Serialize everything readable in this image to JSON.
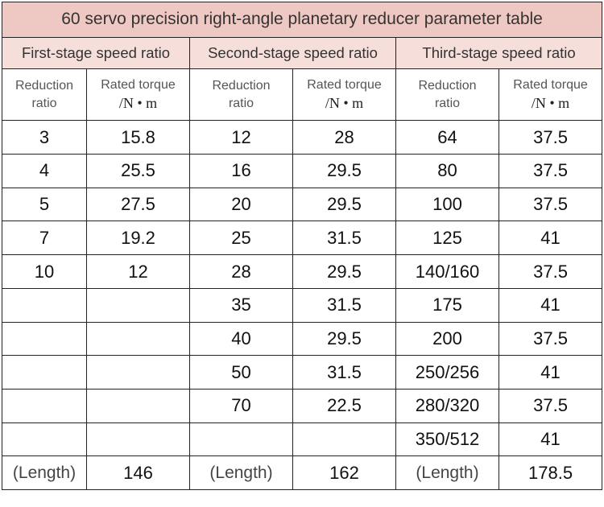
{
  "title": "60 servo precision right-angle planetary reducer parameter table",
  "stages": [
    {
      "label": "First-stage speed ratio"
    },
    {
      "label": "Second-stage speed ratio"
    },
    {
      "label": "Third-stage speed ratio"
    }
  ],
  "headers": {
    "ratio_line1": "Reduction",
    "ratio_line2": "ratio",
    "torque_line1": "Rated torque",
    "torque_line2": "/N • m"
  },
  "rows": [
    [
      "3",
      "15.8",
      "12",
      "28",
      "64",
      "37.5"
    ],
    [
      "4",
      "25.5",
      "16",
      "29.5",
      "80",
      "37.5"
    ],
    [
      "5",
      "27.5",
      "20",
      "29.5",
      "100",
      "37.5"
    ],
    [
      "7",
      "19.2",
      "25",
      "31.5",
      "125",
      "41"
    ],
    [
      "10",
      "12",
      "28",
      "29.5",
      "140/160",
      "37.5"
    ],
    [
      "",
      "",
      "35",
      "31.5",
      "175",
      "41"
    ],
    [
      "",
      "",
      "40",
      "29.5",
      "200",
      "37.5"
    ],
    [
      "",
      "",
      "50",
      "31.5",
      "250/256",
      "41"
    ],
    [
      "",
      "",
      "70",
      "22.5",
      "280/320",
      "37.5"
    ],
    [
      "",
      "",
      "",
      "",
      "350/512",
      "41"
    ]
  ],
  "length_row": {
    "label": "(Length)",
    "values": [
      "146",
      "162",
      "178.5"
    ]
  }
}
